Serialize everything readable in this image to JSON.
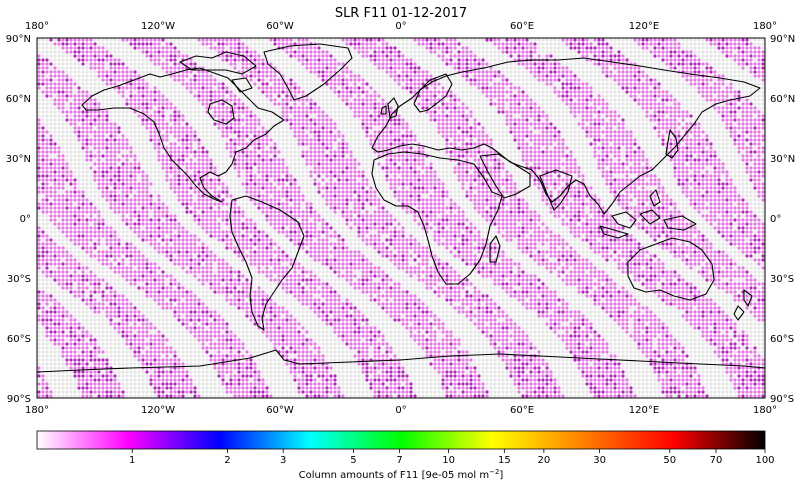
{
  "title": "SLR F11 01-12-2017",
  "map": {
    "projection": "plate-carree",
    "lon_range": [
      -180,
      180
    ],
    "lat_range": [
      -90,
      90
    ],
    "top_labels": [
      "180°",
      "120°W",
      "60°W",
      "0°",
      "60°E",
      "120°E",
      "180°"
    ],
    "bottom_labels": [
      "180°",
      "120°W",
      "60°W",
      "0°",
      "60°E",
      "120°E",
      "180°"
    ],
    "left_labels": [
      "90°N",
      "60°N",
      "30°N",
      "0°",
      "30°S",
      "60°S",
      "90°S"
    ],
    "right_labels": [
      "90°N",
      "60°N",
      "30°N",
      "0°",
      "30°S",
      "60°S",
      "90°S"
    ],
    "marker": "dot grid (approx. 2° spacing), mostly light magenta / purple, gaps shown white-grey",
    "colors": {
      "low": "#f4d8f2",
      "mid": "#e07ae0",
      "high": "#b02ab8",
      "missing": "#e6e6e6",
      "coastline": "#000000"
    }
  },
  "colorbar": {
    "label": "Column amounts of F11 [9e-05 mol m",
    "label_sup": "−2",
    "label_end": "]",
    "ticks": [
      "1",
      "2",
      "3",
      "5",
      "7",
      "10",
      "15",
      "20",
      "30",
      "50",
      "70",
      "100"
    ],
    "tick_values": [
      1,
      2,
      3,
      5,
      7,
      10,
      15,
      20,
      30,
      50,
      70,
      100
    ],
    "range": [
      0.5,
      100
    ],
    "scale": "log",
    "stops": [
      "#ffffff",
      "#ff00ff",
      "#0000ff",
      "#00ffff",
      "#00ff00",
      "#ffff00",
      "#ff8000",
      "#ff0000",
      "#000000"
    ]
  }
}
